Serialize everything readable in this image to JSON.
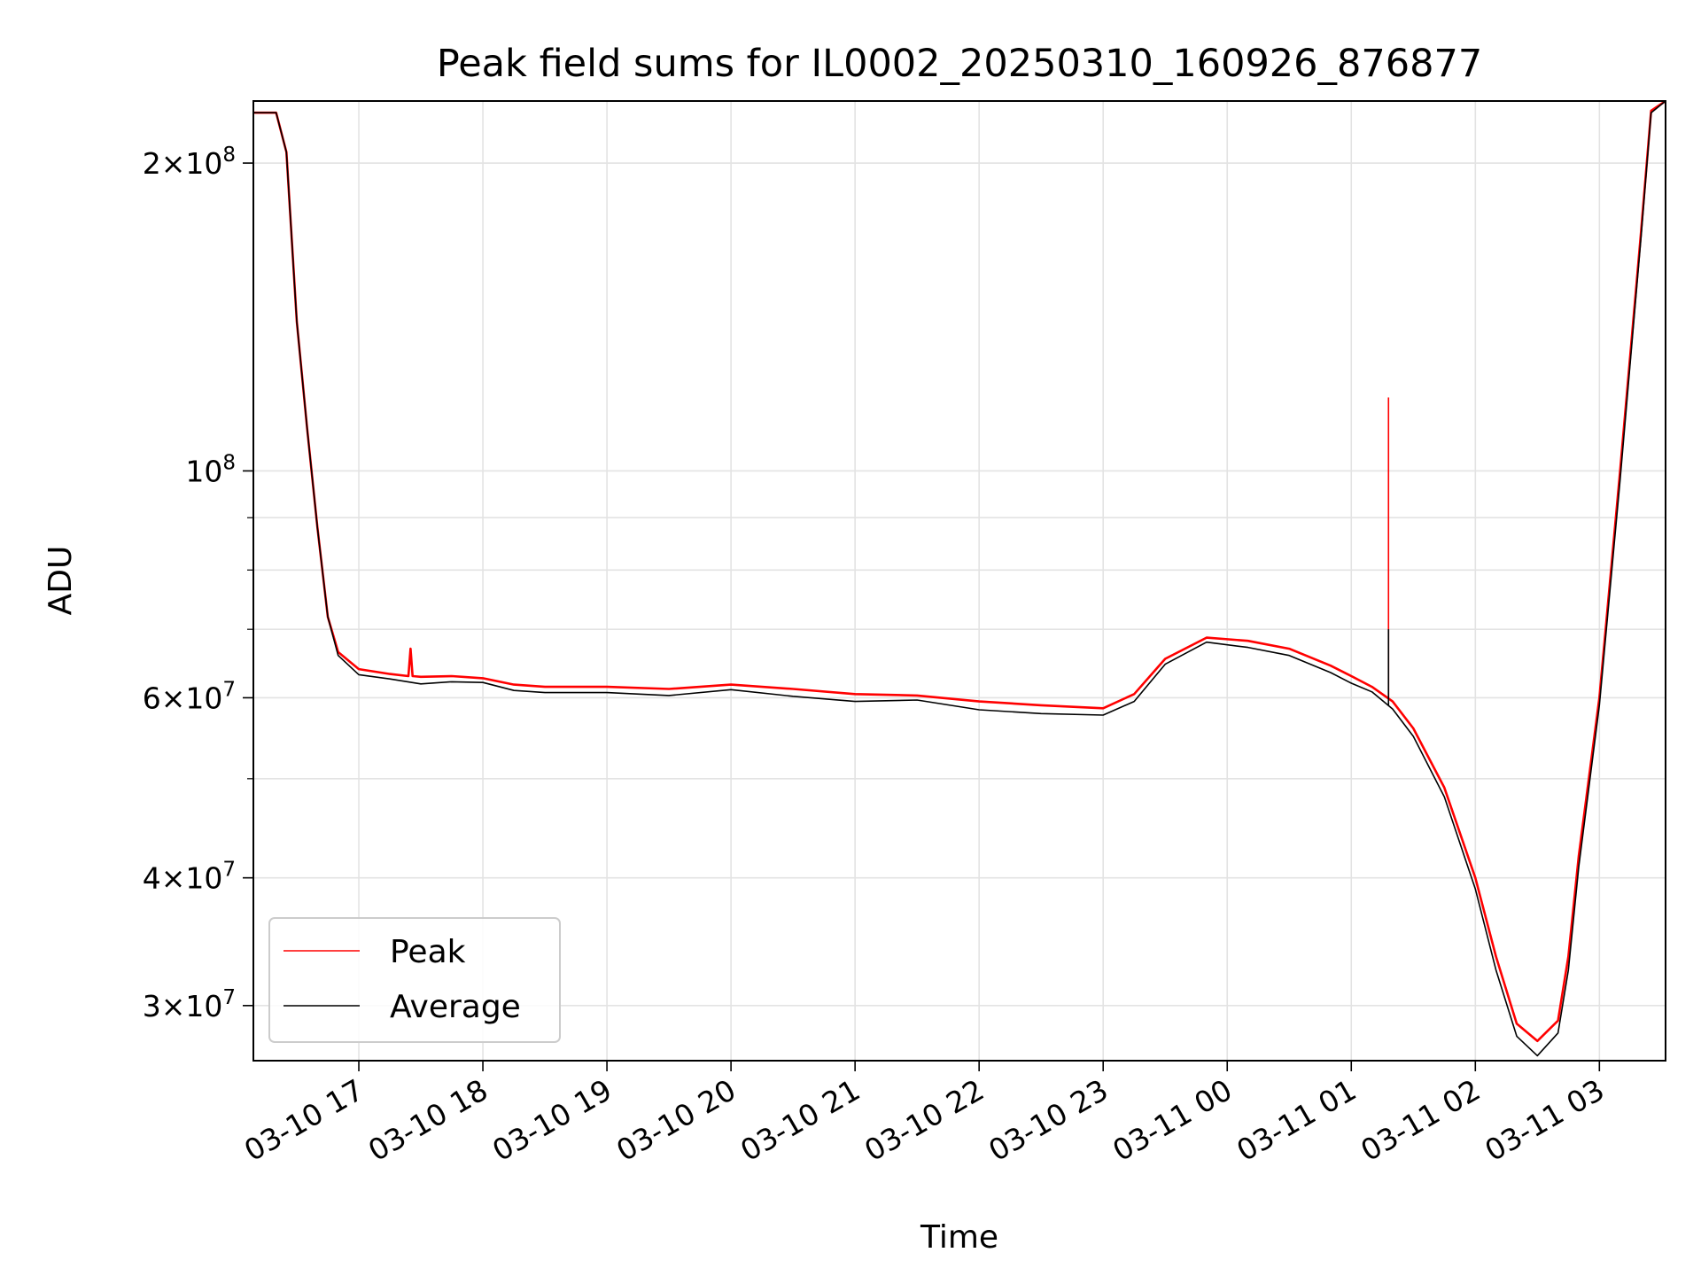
{
  "chart_data": {
    "type": "line",
    "title": "Peak field sums for IL0002_20250310_160926_876877",
    "xlabel": "Time",
    "ylabel": "ADU",
    "yscale": "log",
    "xlim": [
      "2025-03-10 16:09",
      "2025-03-11 03:32"
    ],
    "ylim": [
      26500000,
      230000000
    ],
    "grid": true,
    "legend_location": "lower-left",
    "x_ticks": [
      "2025-03-10 17:00",
      "2025-03-10 18:00",
      "2025-03-10 19:00",
      "2025-03-10 20:00",
      "2025-03-10 21:00",
      "2025-03-10 22:00",
      "2025-03-10 23:00",
      "2025-03-11 00:00",
      "2025-03-11 01:00",
      "2025-03-11 02:00",
      "2025-03-11 03:00"
    ],
    "x_tick_labels": [
      "03-10 17",
      "03-10 18",
      "03-10 19",
      "03-10 20",
      "03-10 21",
      "03-10 22",
      "03-10 23",
      "03-11 00",
      "03-11 01",
      "03-11 02",
      "03-11 03"
    ],
    "y_major_ticks": [
      {
        "value": 30000000,
        "mantissa": "3",
        "exp": "7"
      },
      {
        "value": 40000000,
        "mantissa": "4",
        "exp": "7"
      },
      {
        "value": 60000000,
        "mantissa": "6",
        "exp": "7"
      },
      {
        "value": 100000000,
        "mantissa": "",
        "exp": "8"
      },
      {
        "value": 200000000,
        "mantissa": "2",
        "exp": "8"
      }
    ],
    "y_minor_gridlines": [
      50000000,
      70000000,
      80000000,
      90000000
    ],
    "series": [
      {
        "name": "Peak",
        "color": "#ff0000",
        "x": [
          "2025-03-10 16:09",
          "2025-03-10 16:20",
          "2025-03-10 16:25",
          "2025-03-10 16:30",
          "2025-03-10 16:35",
          "2025-03-10 16:40",
          "2025-03-10 16:45",
          "2025-03-10 16:50",
          "2025-03-10 17:00",
          "2025-03-10 17:15",
          "2025-03-10 17:24",
          "2025-03-10 17:25",
          "2025-03-10 17:26",
          "2025-03-10 17:30",
          "2025-03-10 17:45",
          "2025-03-10 18:00",
          "2025-03-10 18:15",
          "2025-03-10 18:30",
          "2025-03-10 19:00",
          "2025-03-10 19:30",
          "2025-03-10 20:00",
          "2025-03-10 20:30",
          "2025-03-10 21:00",
          "2025-03-10 21:30",
          "2025-03-10 22:00",
          "2025-03-10 22:30",
          "2025-03-10 23:00",
          "2025-03-10 23:15",
          "2025-03-10 23:30",
          "2025-03-10 23:50",
          "2025-03-11 00:10",
          "2025-03-11 00:30",
          "2025-03-11 00:50",
          "2025-03-11 01:00",
          "2025-03-11 01:10",
          "2025-03-11 01:20",
          "2025-03-11 01:30",
          "2025-03-11 01:45",
          "2025-03-11 02:00",
          "2025-03-11 02:10",
          "2025-03-11 02:20",
          "2025-03-11 02:30",
          "2025-03-11 02:40",
          "2025-03-11 02:45",
          "2025-03-11 02:50",
          "2025-03-11 03:00",
          "2025-03-11 03:10",
          "2025-03-11 03:20",
          "2025-03-11 03:25",
          "2025-03-11 03:32"
        ],
        "y": [
          224000000,
          224000000,
          205000000,
          140000000,
          110000000,
          88000000,
          72000000,
          66500000,
          64000000,
          63300000,
          63000000,
          67000000,
          63000000,
          62900000,
          63000000,
          62700000,
          61800000,
          61500000,
          61500000,
          61200000,
          61800000,
          61200000,
          60500000,
          60300000,
          59500000,
          59000000,
          58600000,
          60500000,
          65500000,
          68700000,
          68200000,
          67000000,
          64500000,
          63000000,
          61500000,
          59500000,
          56000000,
          49000000,
          40000000,
          33500000,
          28800000,
          27700000,
          29000000,
          33500000,
          42000000,
          60000000,
          100000000,
          170000000,
          225000000,
          230000000
        ]
      },
      {
        "name": "Average",
        "color": "#000000",
        "x": [
          "2025-03-10 16:09",
          "2025-03-10 16:20",
          "2025-03-10 16:25",
          "2025-03-10 16:30",
          "2025-03-10 16:35",
          "2025-03-10 16:40",
          "2025-03-10 16:45",
          "2025-03-10 16:50",
          "2025-03-10 17:00",
          "2025-03-10 17:15",
          "2025-03-10 17:30",
          "2025-03-10 17:45",
          "2025-03-10 18:00",
          "2025-03-10 18:15",
          "2025-03-10 18:30",
          "2025-03-10 19:00",
          "2025-03-10 19:30",
          "2025-03-10 20:00",
          "2025-03-10 20:30",
          "2025-03-10 21:00",
          "2025-03-10 21:30",
          "2025-03-10 22:00",
          "2025-03-10 22:30",
          "2025-03-10 23:00",
          "2025-03-10 23:15",
          "2025-03-10 23:30",
          "2025-03-10 23:50",
          "2025-03-11 00:10",
          "2025-03-11 00:30",
          "2025-03-11 00:50",
          "2025-03-11 01:00",
          "2025-03-11 01:10",
          "2025-03-11 01:20",
          "2025-03-11 01:30",
          "2025-03-11 01:45",
          "2025-03-11 02:00",
          "2025-03-11 02:10",
          "2025-03-11 02:20",
          "2025-03-11 02:30",
          "2025-03-11 02:40",
          "2025-03-11 02:45",
          "2025-03-11 02:50",
          "2025-03-11 03:00",
          "2025-03-11 03:10",
          "2025-03-11 03:20",
          "2025-03-11 03:25",
          "2025-03-11 03:32"
        ],
        "y": [
          224000000,
          224000000,
          205000000,
          140000000,
          110000000,
          88000000,
          72000000,
          66000000,
          63200000,
          62600000,
          61900000,
          62200000,
          62100000,
          61000000,
          60700000,
          60700000,
          60300000,
          61100000,
          60200000,
          59500000,
          59700000,
          58400000,
          57900000,
          57700000,
          59500000,
          64700000,
          68000000,
          67200000,
          66000000,
          63500000,
          62000000,
          60800000,
          58500000,
          55000000,
          48000000,
          39000000,
          32500000,
          28000000,
          26800000,
          28200000,
          32500000,
          41000000,
          59000000,
          98000000,
          168000000,
          224000000,
          230000000
        ]
      }
    ],
    "annotations": [
      {
        "series": "Peak",
        "type": "spike",
        "x": "2025-03-11 01:18",
        "y": 118000000
      },
      {
        "series": "Average",
        "type": "spike",
        "x": "2025-03-11 01:18",
        "y": 70000000
      }
    ]
  }
}
